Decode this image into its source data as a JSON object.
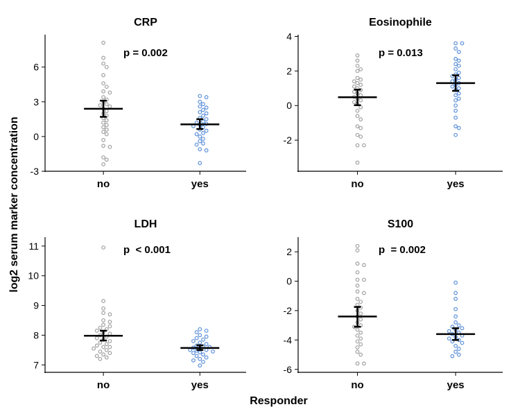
{
  "chart_data": {
    "type": "scatter",
    "xlabel": "Responder",
    "ylabel": "log2 serum marker concentration",
    "categories": [
      "no",
      "yes"
    ],
    "colors": {
      "no": "#a0a0a0",
      "yes": "#5b8fd9"
    },
    "panels": [
      {
        "title": "CRP",
        "pvalue": "p = 0.002",
        "ylim": [
          -3,
          8.8
        ],
        "yticks": [
          -3,
          0,
          3,
          6
        ],
        "summary": {
          "no": {
            "mean": 2.4,
            "err_low": 1.7,
            "err_high": 3.1
          },
          "yes": {
            "mean": 1.05,
            "err_low": 0.65,
            "err_high": 1.5
          }
        },
        "points": {
          "no": [
            8.1,
            6.8,
            6.3,
            6.0,
            5.3,
            4.6,
            4.3,
            3.9,
            3.8,
            3.4,
            3.2,
            3.0,
            2.8,
            2.7,
            2.6,
            2.4,
            2.2,
            2.0,
            1.8,
            1.6,
            1.4,
            1.2,
            1.0,
            0.8,
            0.6,
            0.4,
            0.2,
            -0.3,
            -0.8,
            -0.9,
            -1.8,
            -2.0,
            -2.4
          ],
          "yes": [
            3.5,
            3.4,
            3.0,
            2.8,
            2.6,
            2.5,
            2.3,
            2.1,
            2.0,
            1.8,
            1.6,
            1.5,
            1.3,
            1.2,
            1.1,
            1.0,
            0.9,
            0.8,
            0.6,
            0.5,
            0.3,
            0.2,
            0.0,
            -0.2,
            -0.4,
            -0.6,
            -0.7,
            -1.1,
            -1.2,
            -2.3
          ]
        }
      },
      {
        "title": "Eosinophile",
        "pvalue": "p = 0.013",
        "ylim": [
          -3.8,
          4.1
        ],
        "yticks": [
          -2,
          0,
          2,
          4
        ],
        "summary": {
          "no": {
            "mean": 0.48,
            "err_low": 0.02,
            "err_high": 0.92
          },
          "yes": {
            "mean": 1.3,
            "err_low": 0.85,
            "err_high": 1.75
          }
        },
        "points": {
          "no": [
            2.9,
            2.6,
            2.3,
            2.1,
            2.0,
            1.6,
            1.5,
            1.4,
            1.3,
            1.2,
            1.1,
            1.0,
            0.9,
            0.8,
            0.7,
            0.6,
            0.5,
            0.4,
            0.3,
            0.2,
            0.1,
            -0.1,
            -0.3,
            -0.6,
            -0.8,
            -1.2,
            -1.3,
            -1.7,
            -1.8,
            -2.3,
            -2.3,
            -3.3
          ],
          "yes": [
            3.6,
            3.6,
            3.3,
            3.1,
            2.7,
            2.6,
            2.4,
            2.3,
            2.1,
            1.9,
            1.8,
            1.7,
            1.6,
            1.5,
            1.4,
            1.3,
            1.2,
            1.1,
            1.0,
            0.9,
            0.7,
            0.6,
            0.4,
            0.3,
            0.0,
            -0.3,
            -0.7,
            -1.2,
            -1.3,
            -1.7
          ]
        }
      },
      {
        "title": "LDH",
        "pvalue": "p  < 0.001",
        "ylim": [
          6.75,
          11.3
        ],
        "yticks": [
          7,
          8,
          9,
          10,
          11
        ],
        "summary": {
          "no": {
            "mean": 7.98,
            "err_low": 7.82,
            "err_high": 8.15
          },
          "yes": {
            "mean": 7.57,
            "err_low": 7.5,
            "err_high": 7.66
          }
        },
        "points": {
          "no": [
            10.95,
            9.15,
            8.9,
            8.75,
            8.7,
            8.5,
            8.45,
            8.35,
            8.3,
            8.25,
            8.2,
            8.15,
            8.1,
            8.05,
            8.0,
            7.95,
            7.9,
            7.85,
            7.8,
            7.75,
            7.7,
            7.65,
            7.6,
            7.6,
            7.55,
            7.5,
            7.45,
            7.4,
            7.35,
            7.3,
            7.25,
            7.2
          ],
          "yes": [
            8.2,
            8.15,
            8.1,
            8.0,
            7.95,
            7.9,
            7.85,
            7.8,
            7.75,
            7.7,
            7.65,
            7.62,
            7.6,
            7.58,
            7.55,
            7.5,
            7.5,
            7.48,
            7.45,
            7.42,
            7.4,
            7.35,
            7.3,
            7.25,
            7.2,
            7.15,
            7.1,
            6.98
          ]
        }
      },
      {
        "title": "S100",
        "pvalue": "p  = 0.002",
        "ylim": [
          -6.2,
          3
        ],
        "yticks": [
          -6,
          -4,
          -2,
          0,
          2
        ],
        "summary": {
          "no": {
            "mean": -2.4,
            "err_low": -3.1,
            "err_high": -1.75
          },
          "yes": {
            "mean": -3.6,
            "err_low": -4.0,
            "err_high": -3.2
          }
        },
        "points": {
          "no": [
            2.4,
            2.1,
            1.2,
            1.1,
            0.6,
            0.1,
            0.1,
            -0.3,
            -0.7,
            -0.8,
            -1.2,
            -1.4,
            -1.6,
            -1.8,
            -2.0,
            -2.2,
            -2.4,
            -2.6,
            -2.8,
            -3.0,
            -3.1,
            -3.3,
            -3.5,
            -3.7,
            -3.9,
            -4.1,
            -4.3,
            -4.5,
            -4.8,
            -5.0,
            -5.6,
            -5.6
          ],
          "yes": [
            -0.1,
            -0.8,
            -1.2,
            -1.9,
            -2.4,
            -2.8,
            -3.0,
            -3.1,
            -3.2,
            -3.3,
            -3.4,
            -3.5,
            -3.6,
            -3.7,
            -3.8,
            -3.9,
            -4.0,
            -4.1,
            -4.2,
            -4.4,
            -4.6,
            -4.8,
            -5.0,
            -5.1
          ]
        }
      }
    ]
  }
}
